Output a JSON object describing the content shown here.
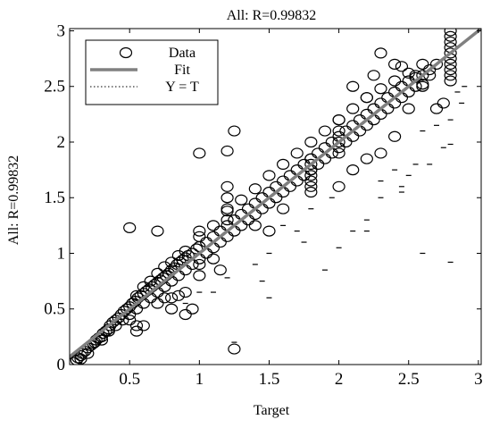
{
  "chart_data": {
    "type": "scatter",
    "title": "All: R=0.99832",
    "xlabel": "Target",
    "ylabel": "All: R=0.99832",
    "xlim": [
      0.07,
      3.02
    ],
    "ylim": [
      0,
      3.02
    ],
    "x_ticks": [
      0.5,
      1,
      1.5,
      2,
      2.5,
      3
    ],
    "x_tick_labels": [
      "0.5",
      "1",
      "1.5",
      "2",
      "2.5",
      "3"
    ],
    "y_ticks": [
      0,
      0.5,
      1,
      1.5,
      2,
      2.5,
      3
    ],
    "y_tick_labels": [
      "0",
      "0.5",
      "1",
      "1.5",
      "2",
      "2.5",
      "3"
    ],
    "grid": false,
    "legend_position": "top-left",
    "legend": [
      {
        "label": "Data",
        "style": "circle-marker"
      },
      {
        "label": "Fit",
        "style": "solid-line"
      },
      {
        "label": "Y = T",
        "style": "dotted-line"
      }
    ],
    "fit_line": {
      "slope": 1.0,
      "intercept": 0.0,
      "color": "#808080"
    },
    "identity_line": {
      "slope": 1,
      "intercept": 0,
      "color": "#000000"
    },
    "series": [
      {
        "name": "Data",
        "marker": "circle",
        "points": [
          [
            0.1,
            0.02
          ],
          [
            0.12,
            0.04
          ],
          [
            0.13,
            0.06
          ],
          [
            0.15,
            0.08
          ],
          [
            0.16,
            0.1
          ],
          [
            0.18,
            0.12
          ],
          [
            0.2,
            0.15
          ],
          [
            0.22,
            0.17
          ],
          [
            0.24,
            0.19
          ],
          [
            0.26,
            0.22
          ],
          [
            0.28,
            0.24
          ],
          [
            0.3,
            0.25
          ],
          [
            0.31,
            0.28
          ],
          [
            0.33,
            0.3
          ],
          [
            0.35,
            0.32
          ],
          [
            0.36,
            0.35
          ],
          [
            0.38,
            0.38
          ],
          [
            0.4,
            0.4
          ],
          [
            0.42,
            0.42
          ],
          [
            0.44,
            0.45
          ],
          [
            0.46,
            0.48
          ],
          [
            0.48,
            0.5
          ],
          [
            0.5,
            0.52
          ],
          [
            0.52,
            0.55
          ],
          [
            0.54,
            0.57
          ],
          [
            0.56,
            0.6
          ],
          [
            0.58,
            0.62
          ],
          [
            0.6,
            0.64
          ],
          [
            0.62,
            0.66
          ],
          [
            0.64,
            0.68
          ],
          [
            0.66,
            0.7
          ],
          [
            0.68,
            0.72
          ],
          [
            0.7,
            0.74
          ],
          [
            0.72,
            0.76
          ],
          [
            0.74,
            0.78
          ],
          [
            0.76,
            0.8
          ],
          [
            0.78,
            0.82
          ],
          [
            0.8,
            0.85
          ],
          [
            0.82,
            0.87
          ],
          [
            0.84,
            0.9
          ],
          [
            0.86,
            0.92
          ],
          [
            0.88,
            0.94
          ],
          [
            0.9,
            0.96
          ],
          [
            0.92,
            0.98
          ],
          [
            0.95,
            1.0
          ],
          [
            0.98,
            1.04
          ],
          [
            1.0,
            1.06
          ],
          [
            1.05,
            1.1
          ],
          [
            1.1,
            1.15
          ],
          [
            1.15,
            1.2
          ],
          [
            1.2,
            1.25
          ],
          [
            1.25,
            1.3
          ],
          [
            1.3,
            1.35
          ],
          [
            1.35,
            1.4
          ],
          [
            1.4,
            1.45
          ],
          [
            1.45,
            1.5
          ],
          [
            1.5,
            1.55
          ],
          [
            1.55,
            1.6
          ],
          [
            1.6,
            1.65
          ],
          [
            1.65,
            1.7
          ],
          [
            1.7,
            1.75
          ],
          [
            1.75,
            1.8
          ],
          [
            1.8,
            1.85
          ],
          [
            1.85,
            1.9
          ],
          [
            1.9,
            1.95
          ],
          [
            1.95,
            2.0
          ],
          [
            2.0,
            2.05
          ],
          [
            2.05,
            2.1
          ],
          [
            2.1,
            2.15
          ],
          [
            2.15,
            2.2
          ],
          [
            2.2,
            2.25
          ],
          [
            2.25,
            2.3
          ],
          [
            2.3,
            2.35
          ],
          [
            2.35,
            2.4
          ],
          [
            2.4,
            2.45
          ],
          [
            2.45,
            2.5
          ],
          [
            2.5,
            2.55
          ],
          [
            2.55,
            2.58
          ],
          [
            2.6,
            2.6
          ],
          [
            2.65,
            2.65
          ],
          [
            2.7,
            2.7
          ],
          [
            2.8,
            2.8
          ],
          [
            0.15,
            0.05
          ],
          [
            0.2,
            0.1
          ],
          [
            0.25,
            0.2
          ],
          [
            0.3,
            0.22
          ],
          [
            0.35,
            0.3
          ],
          [
            0.4,
            0.35
          ],
          [
            0.45,
            0.4
          ],
          [
            0.5,
            0.45
          ],
          [
            0.55,
            0.5
          ],
          [
            0.6,
            0.55
          ],
          [
            0.65,
            0.6
          ],
          [
            0.7,
            0.65
          ],
          [
            0.75,
            0.7
          ],
          [
            0.8,
            0.75
          ],
          [
            0.85,
            0.8
          ],
          [
            0.9,
            0.85
          ],
          [
            0.95,
            0.9
          ],
          [
            1.0,
            0.95
          ],
          [
            1.05,
            1.0
          ],
          [
            1.1,
            1.05
          ],
          [
            1.15,
            1.1
          ],
          [
            1.2,
            1.15
          ],
          [
            1.25,
            1.2
          ],
          [
            1.3,
            1.25
          ],
          [
            1.35,
            1.3
          ],
          [
            1.4,
            1.35
          ],
          [
            1.45,
            1.4
          ],
          [
            1.5,
            1.45
          ],
          [
            1.55,
            1.5
          ],
          [
            1.6,
            1.55
          ],
          [
            1.65,
            1.6
          ],
          [
            1.7,
            1.65
          ],
          [
            1.75,
            1.7
          ],
          [
            1.8,
            1.75
          ],
          [
            1.85,
            1.8
          ],
          [
            1.9,
            1.85
          ],
          [
            1.95,
            1.9
          ],
          [
            2.0,
            1.95
          ],
          [
            2.05,
            2.0
          ],
          [
            2.1,
            2.05
          ],
          [
            2.15,
            2.1
          ],
          [
            2.2,
            2.15
          ],
          [
            2.25,
            2.2
          ],
          [
            2.3,
            2.25
          ],
          [
            2.35,
            2.3
          ],
          [
            2.4,
            2.35
          ],
          [
            2.45,
            2.4
          ],
          [
            2.5,
            2.45
          ],
          [
            2.55,
            2.5
          ],
          [
            2.6,
            2.52
          ],
          [
            0.55,
            0.62
          ],
          [
            0.6,
            0.7
          ],
          [
            0.65,
            0.75
          ],
          [
            0.7,
            0.82
          ],
          [
            0.75,
            0.88
          ],
          [
            0.8,
            0.92
          ],
          [
            0.85,
            0.98
          ],
          [
            0.9,
            1.02
          ],
          [
            1.0,
            1.15
          ],
          [
            1.1,
            1.25
          ],
          [
            1.2,
            1.38
          ],
          [
            1.3,
            1.48
          ],
          [
            1.4,
            1.58
          ],
          [
            1.5,
            1.7
          ],
          [
            1.6,
            1.8
          ],
          [
            1.7,
            1.9
          ],
          [
            1.8,
            2.0
          ],
          [
            1.9,
            2.1
          ],
          [
            2.0,
            2.2
          ],
          [
            2.1,
            2.3
          ],
          [
            2.2,
            2.4
          ],
          [
            2.3,
            2.48
          ],
          [
            2.4,
            2.55
          ],
          [
            2.5,
            2.62
          ],
          [
            2.6,
            2.7
          ],
          [
            1.8,
            1.55
          ],
          [
            1.8,
            1.6
          ],
          [
            1.8,
            1.65
          ],
          [
            1.8,
            1.7
          ],
          [
            1.8,
            1.75
          ],
          [
            1.8,
            1.8
          ],
          [
            1.8,
            1.85
          ],
          [
            2.8,
            2.55
          ],
          [
            2.8,
            2.6
          ],
          [
            2.8,
            2.65
          ],
          [
            2.8,
            2.7
          ],
          [
            2.8,
            2.75
          ],
          [
            2.8,
            2.85
          ],
          [
            2.8,
            2.9
          ],
          [
            2.8,
            2.95
          ],
          [
            2.8,
            3.0
          ],
          [
            2.0,
            1.9
          ],
          [
            2.0,
            2.0
          ],
          [
            2.0,
            2.1
          ],
          [
            2.0,
            2.2
          ],
          [
            1.2,
            1.5
          ],
          [
            1.2,
            1.6
          ],
          [
            1.2,
            1.4
          ],
          [
            1.2,
            1.3
          ],
          [
            1.0,
            1.2
          ],
          [
            1.0,
            0.9
          ],
          [
            1.0,
            0.8
          ],
          [
            0.6,
            0.35
          ],
          [
            0.5,
            0.4
          ],
          [
            0.55,
            0.3
          ],
          [
            0.7,
            0.55
          ],
          [
            0.75,
            0.6
          ],
          [
            0.8,
            0.6
          ],
          [
            0.85,
            0.62
          ],
          [
            0.9,
            0.65
          ],
          [
            1.1,
            0.95
          ],
          [
            1.15,
            0.85
          ],
          [
            1.25,
            0.14
          ],
          [
            0.5,
            1.23
          ],
          [
            0.7,
            1.2
          ],
          [
            1.0,
            1.9
          ],
          [
            1.2,
            1.92
          ],
          [
            1.25,
            2.1
          ],
          [
            0.95,
            0.5
          ],
          [
            0.9,
            0.45
          ],
          [
            0.8,
            0.5
          ],
          [
            0.55,
            0.35
          ],
          [
            1.5,
            1.2
          ],
          [
            1.6,
            1.4
          ],
          [
            1.4,
            1.25
          ],
          [
            2.0,
            1.6
          ],
          [
            2.1,
            1.75
          ],
          [
            2.2,
            1.85
          ],
          [
            2.3,
            1.9
          ],
          [
            2.4,
            2.05
          ],
          [
            2.5,
            2.3
          ],
          [
            2.55,
            2.6
          ],
          [
            2.7,
            2.3
          ],
          [
            2.75,
            2.35
          ],
          [
            2.4,
            2.7
          ],
          [
            2.3,
            2.8
          ],
          [
            2.2,
            2.4
          ],
          [
            2.1,
            2.5
          ],
          [
            2.25,
            2.6
          ],
          [
            2.45,
            2.68
          ],
          [
            2.6,
            2.5
          ],
          [
            2.65,
            2.6
          ]
        ]
      },
      {
        "name": "Data",
        "marker": "dash",
        "points": [
          [
            2.9,
            2.5
          ],
          [
            2.85,
            2.45
          ],
          [
            2.88,
            2.35
          ],
          [
            2.8,
            2.2
          ],
          [
            2.7,
            2.15
          ],
          [
            2.75,
            1.95
          ],
          [
            2.6,
            2.1
          ],
          [
            2.55,
            1.8
          ],
          [
            2.5,
            1.7
          ],
          [
            2.45,
            1.6
          ],
          [
            2.4,
            1.75
          ],
          [
            2.3,
            1.5
          ],
          [
            2.2,
            1.3
          ],
          [
            2.1,
            1.2
          ],
          [
            2.0,
            1.05
          ],
          [
            1.9,
            0.85
          ],
          [
            1.8,
            1.4
          ],
          [
            1.75,
            1.1
          ],
          [
            1.7,
            1.2
          ],
          [
            1.6,
            1.25
          ],
          [
            1.5,
            0.6
          ],
          [
            1.5,
            1.0
          ],
          [
            1.45,
            0.75
          ],
          [
            1.4,
            0.9
          ],
          [
            1.25,
            0.2
          ],
          [
            1.2,
            0.78
          ],
          [
            1.1,
            0.65
          ],
          [
            1.0,
            0.65
          ],
          [
            0.9,
            0.55
          ],
          [
            2.8,
            1.98
          ],
          [
            2.8,
            0.92
          ],
          [
            2.6,
            1.0
          ],
          [
            2.2,
            1.2
          ],
          [
            1.95,
            1.5
          ],
          [
            2.3,
            1.65
          ],
          [
            2.45,
            1.55
          ],
          [
            2.65,
            1.8
          ]
        ]
      }
    ]
  }
}
